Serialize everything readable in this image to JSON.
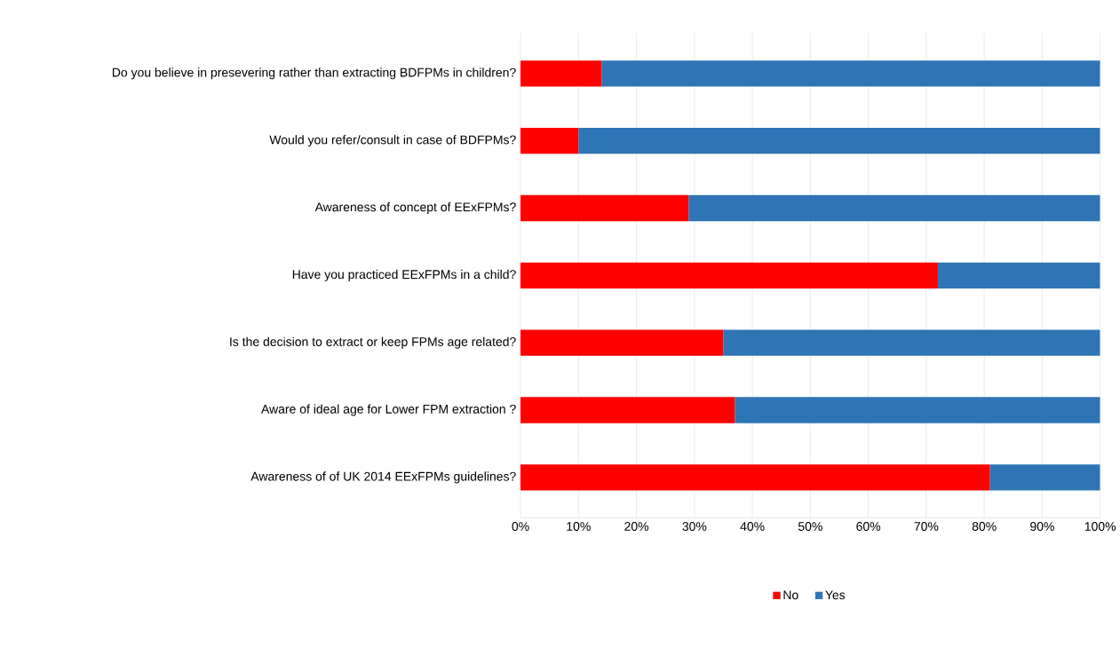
{
  "chart_data": {
    "type": "bar",
    "orientation": "horizontal",
    "stacked": true,
    "categories": [
      "Do you believe in presevering rather than extracting BDFPMs in children?",
      "Would you refer/consult in case of BDFPMs?",
      "Awareness of concept of EExFPMs?",
      "Have you practiced EExFPMs in a child?",
      "Is the decision to extract or keep FPMs age related?",
      "Aware of ideal age for Lower FPM extraction ?",
      "Awareness of of UK 2014 EExFPMs guidelines?"
    ],
    "series": [
      {
        "name": "No",
        "color": "#ff0000",
        "values": [
          14,
          10,
          29,
          72,
          35,
          37,
          81
        ]
      },
      {
        "name": "Yes",
        "color": "#2e75b6",
        "values": [
          86,
          90,
          71,
          28,
          65,
          63,
          19
        ]
      }
    ],
    "xlim": [
      0,
      100
    ],
    "xticks": [
      {
        "value": 0,
        "label": "0%"
      },
      {
        "value": 10,
        "label": "10%"
      },
      {
        "value": 20,
        "label": "20%"
      },
      {
        "value": 30,
        "label": "30%"
      },
      {
        "value": 40,
        "label": "40%"
      },
      {
        "value": 50,
        "label": "50%"
      },
      {
        "value": 60,
        "label": "60%"
      },
      {
        "value": 70,
        "label": "70%"
      },
      {
        "value": 80,
        "label": "80%"
      },
      {
        "value": 90,
        "label": "90%"
      },
      {
        "value": 100,
        "label": "100%"
      }
    ],
    "grid": "x",
    "legend": "bottom"
  }
}
